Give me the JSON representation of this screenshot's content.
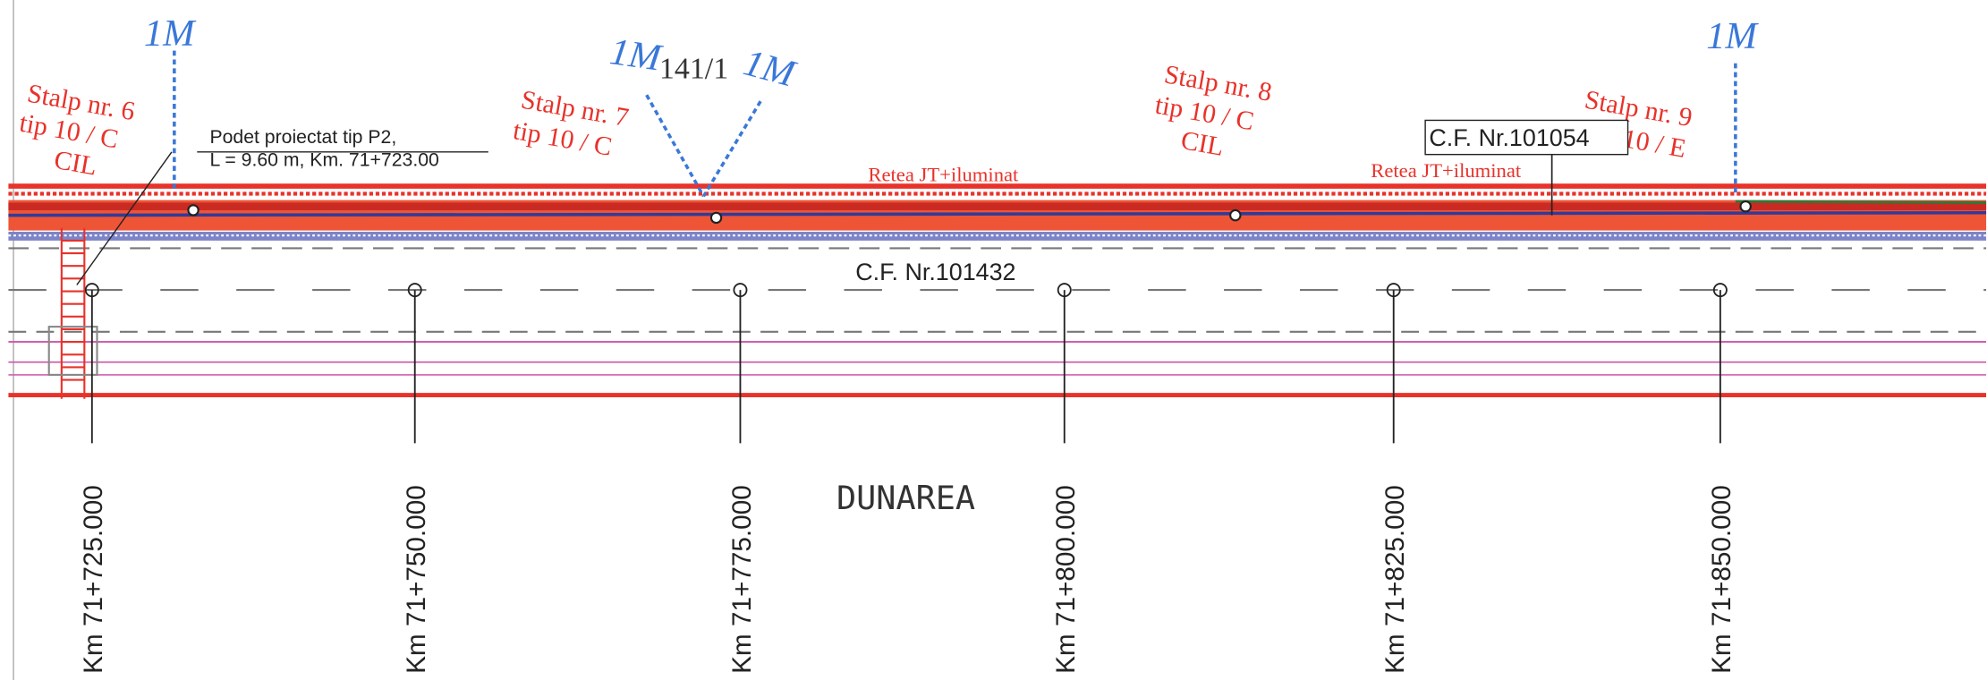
{
  "markers": [
    "1M",
    "1M",
    "141/1",
    "1M",
    "1M"
  ],
  "poles": [
    {
      "name": "Stalp nr. 6",
      "type": "tip 10 / C",
      "note": "CIL"
    },
    {
      "name": "Stalp nr. 7",
      "type": "tip 10 / C"
    },
    {
      "name": "Stalp nr. 8",
      "type": "tip 10 / C",
      "note": "CIL"
    },
    {
      "name": "Stalp nr. 9",
      "type": "10 / E"
    }
  ],
  "culvert": {
    "line1": "Podet proiectat  tip P2,",
    "line2": "L = 9.60 m, Km. 71+723.00"
  },
  "network_labels": [
    "Retea JT+iluminat",
    "Retea JT+iluminat"
  ],
  "parcels": [
    "C.F. Nr.101054",
    "C.F. Nr.101432"
  ],
  "street": "DUNAREA",
  "km_stations": [
    "Km 71+725.000",
    "Km 71+750.000",
    "Km 71+775.000",
    "Km 71+800.000",
    "Km 71+825.000",
    "Km 71+850.000"
  ]
}
